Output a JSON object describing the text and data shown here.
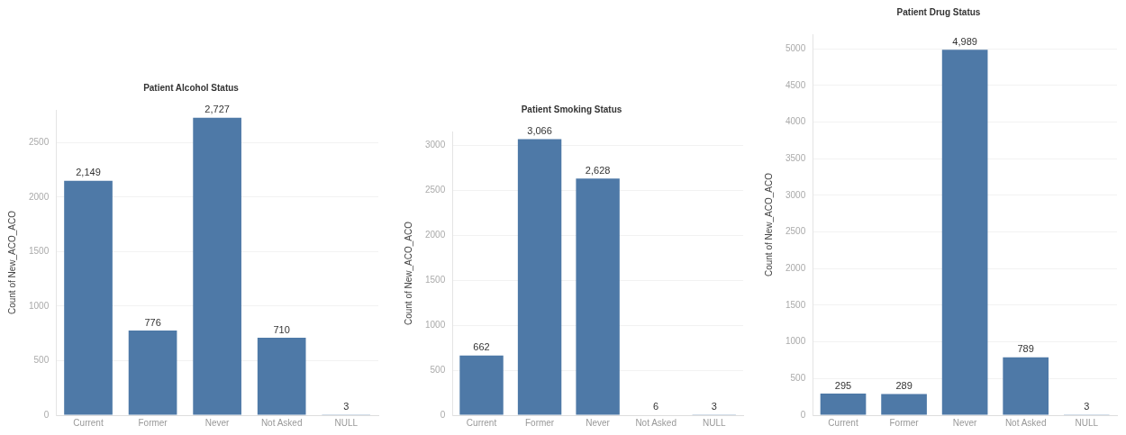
{
  "chart_data": [
    {
      "type": "bar",
      "title": "Patient Alcohol Status",
      "ylabel": "Count of New_ACO_ACO",
      "categories": [
        "Current",
        "Former",
        "Never",
        "Not Asked",
        "NULL"
      ],
      "values": [
        2149,
        776,
        2727,
        710,
        3
      ],
      "value_labels": [
        "2,149",
        "776",
        "2,727",
        "710",
        "3"
      ],
      "color": "#4e79a7",
      "ylim": [
        0,
        2800
      ],
      "yticks": [
        0,
        500,
        1000,
        1500,
        2000,
        2500
      ],
      "grid": "y"
    },
    {
      "type": "bar",
      "title": "Patient Smoking Status",
      "ylabel": "Count of New_ACO_ACO",
      "categories": [
        "Current",
        "Former",
        "Never",
        "Not Asked",
        "NULL"
      ],
      "values": [
        662,
        3066,
        2628,
        6,
        3
      ],
      "value_labels": [
        "662",
        "3,066",
        "2,628",
        "6",
        "3"
      ],
      "color": "#4e79a7",
      "ylim": [
        0,
        3150
      ],
      "yticks": [
        0,
        500,
        1000,
        1500,
        2000,
        2500,
        3000
      ],
      "grid": "y"
    },
    {
      "type": "bar",
      "title": "Patient Drug Status",
      "ylabel": "Count of New_ACO_ACO",
      "categories": [
        "Current",
        "Former",
        "Never",
        "Not Asked",
        "NULL"
      ],
      "values": [
        295,
        289,
        4989,
        789,
        3
      ],
      "value_labels": [
        "295",
        "289",
        "4,989",
        "789",
        "3"
      ],
      "color": "#4e79a7",
      "ylim": [
        0,
        5200
      ],
      "yticks": [
        0,
        500,
        1000,
        1500,
        2000,
        2500,
        3000,
        3500,
        4000,
        4500,
        5000
      ],
      "grid": "y"
    }
  ]
}
